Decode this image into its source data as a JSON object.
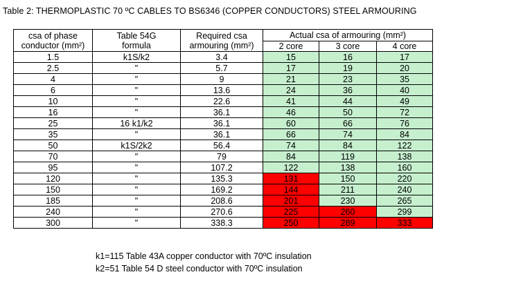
{
  "title": "Table 2: THERMOPLASTIC 70 ºC CABLES TO BS6346 (COPPER CONDUCTORS) STEEL ARMOURING",
  "colors": {
    "ok": "#c6efce",
    "fail": "#ff0000"
  },
  "headers": {
    "csa_line1": "csa of phase",
    "csa_line2": "conductor (mm²)",
    "formula_line1": "Table 54G",
    "formula_line2": "formula",
    "required_line1": "Required csa",
    "required_line2": "armouring (mm²)",
    "actual": "Actual csa of armouring (mm²)",
    "core2": "2 core",
    "core3": "3 core",
    "core4": "4 core"
  },
  "rows": [
    {
      "csa": "1.5",
      "formula": "k1S/k2",
      "required": "3.4",
      "core2": "15",
      "core3": "16",
      "core4": "17",
      "status": [
        "ok",
        "ok",
        "ok"
      ]
    },
    {
      "csa": "2.5",
      "formula": "\"",
      "required": "5.7",
      "core2": "17",
      "core3": "19",
      "core4": "20",
      "status": [
        "ok",
        "ok",
        "ok"
      ]
    },
    {
      "csa": "4",
      "formula": "\"",
      "required": "9",
      "core2": "21",
      "core3": "23",
      "core4": "35",
      "status": [
        "ok",
        "ok",
        "ok"
      ]
    },
    {
      "csa": "6",
      "formula": "\"",
      "required": "13.6",
      "core2": "24",
      "core3": "36",
      "core4": "40",
      "status": [
        "ok",
        "ok",
        "ok"
      ]
    },
    {
      "csa": "10",
      "formula": "\"",
      "required": "22.6",
      "core2": "41",
      "core3": "44",
      "core4": "49",
      "status": [
        "ok",
        "ok",
        "ok"
      ]
    },
    {
      "csa": "16",
      "formula": "\"",
      "required": "36.1",
      "core2": "46",
      "core3": "50",
      "core4": "72",
      "status": [
        "ok",
        "ok",
        "ok"
      ]
    },
    {
      "csa": "25",
      "formula": "16 k1/k2",
      "required": "36.1",
      "core2": "60",
      "core3": "66",
      "core4": "76",
      "status": [
        "ok",
        "ok",
        "ok"
      ]
    },
    {
      "csa": "35",
      "formula": "\"",
      "required": "36.1",
      "core2": "66",
      "core3": "74",
      "core4": "84",
      "status": [
        "ok",
        "ok",
        "ok"
      ]
    },
    {
      "csa": "50",
      "formula": "k1S/2k2",
      "required": "56.4",
      "core2": "74",
      "core3": "84",
      "core4": "122",
      "status": [
        "ok",
        "ok",
        "ok"
      ]
    },
    {
      "csa": "70",
      "formula": "\"",
      "required": "79",
      "core2": "84",
      "core3": "119",
      "core4": "138",
      "status": [
        "ok",
        "ok",
        "ok"
      ]
    },
    {
      "csa": "95",
      "formula": "\"",
      "required": "107.2",
      "core2": "122",
      "core3": "138",
      "core4": "160",
      "status": [
        "ok",
        "ok",
        "ok"
      ]
    },
    {
      "csa": "120",
      "formula": "\"",
      "required": "135.3",
      "core2": "131",
      "core3": "150",
      "core4": "220",
      "status": [
        "fail",
        "ok",
        "ok"
      ]
    },
    {
      "csa": "150",
      "formula": "\"",
      "required": "169.2",
      "core2": "144",
      "core3": "211",
      "core4": "240",
      "status": [
        "fail",
        "ok",
        "ok"
      ]
    },
    {
      "csa": "185",
      "formula": "\"",
      "required": "208.6",
      "core2": "201",
      "core3": "230",
      "core4": "265",
      "status": [
        "fail",
        "ok",
        "ok"
      ]
    },
    {
      "csa": "240",
      "formula": "\"",
      "required": "270.6",
      "core2": "225",
      "core3": "260",
      "core4": "299",
      "status": [
        "fail",
        "fail",
        "ok"
      ]
    },
    {
      "csa": "300",
      "formula": "\"",
      "required": "338.3",
      "core2": "250",
      "core3": "289",
      "core4": "333",
      "status": [
        "fail",
        "fail",
        "fail"
      ]
    }
  ],
  "notes": [
    "k1=115 Table 43A copper conductor with 70ºC insulation",
    "k2=51   Table 54 D steel conductor with 70ºC insulation"
  ]
}
